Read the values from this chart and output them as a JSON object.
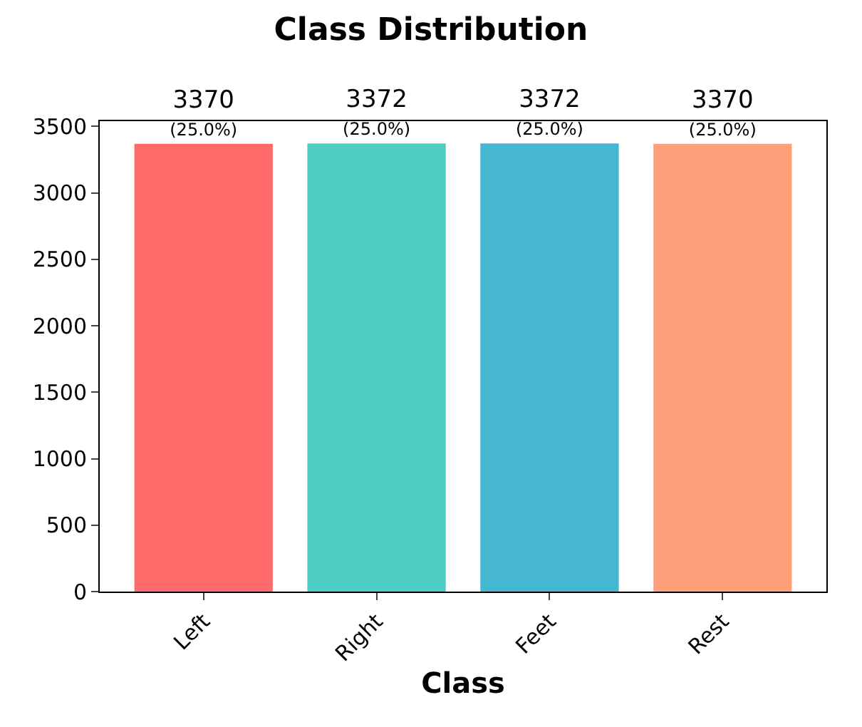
{
  "chart_data": {
    "type": "bar",
    "title": "Class Distribution",
    "xlabel": "Class",
    "categories": [
      "Left",
      "Right",
      "Feet",
      "Rest"
    ],
    "values": [
      3370,
      3372,
      3372,
      3370
    ],
    "colors": [
      "#ff6b6b",
      "#4ecdc4",
      "#45b7d1",
      "#ffa07a"
    ],
    "value_labels": [
      "3370\n(25.0%)",
      "3372\n(25.0%)",
      "3372\n(25.0%)",
      "3370\n(25.0%)"
    ],
    "ylim": [
      0,
      3540
    ],
    "yticks": [
      0,
      500,
      1000,
      1500,
      2000,
      2500,
      3000,
      3500
    ],
    "legend": false
  }
}
